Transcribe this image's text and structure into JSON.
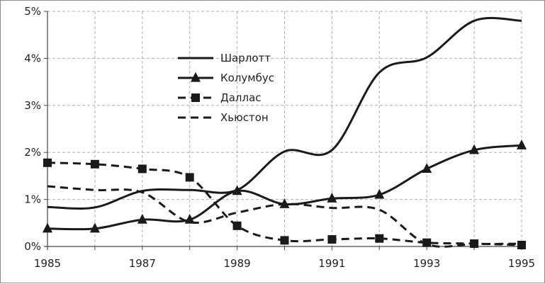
{
  "chart_data": {
    "type": "line",
    "title": "",
    "xlabel": "",
    "ylabel": "",
    "xlim": [
      1985,
      1995
    ],
    "ylim": [
      0,
      5
    ],
    "x_ticks": [
      "1985",
      "1987",
      "1989",
      "1991",
      "1993",
      "1995"
    ],
    "y_ticks": [
      "0%",
      "1%",
      "2%",
      "3%",
      "4%",
      "5%"
    ],
    "grid": true,
    "legend_position": "upper-center",
    "x": [
      1985,
      1986,
      1987,
      1988,
      1989,
      1990,
      1991,
      1992,
      1993,
      1994,
      1995
    ],
    "series": [
      {
        "name": "Шарлотт",
        "style": "solid",
        "marker": "none",
        "values": [
          0.84,
          0.83,
          1.18,
          1.2,
          1.2,
          2.02,
          2.05,
          3.7,
          4.02,
          4.8,
          4.8
        ]
      },
      {
        "name": "Колумбус",
        "style": "solid",
        "marker": "triangle",
        "values": [
          0.38,
          0.38,
          0.57,
          0.57,
          1.18,
          0.9,
          1.02,
          1.1,
          1.65,
          2.05,
          2.15
        ]
      },
      {
        "name": "Даллас",
        "style": "dashed",
        "marker": "square",
        "values": [
          1.78,
          1.75,
          1.65,
          1.47,
          0.44,
          0.13,
          0.15,
          0.17,
          0.08,
          0.06,
          0.03
        ]
      },
      {
        "name": "Хьюстон",
        "style": "dashed",
        "marker": "none",
        "values": [
          1.28,
          1.2,
          1.15,
          0.52,
          0.72,
          0.9,
          0.82,
          0.78,
          0.05,
          0.05,
          0.06
        ]
      }
    ]
  }
}
